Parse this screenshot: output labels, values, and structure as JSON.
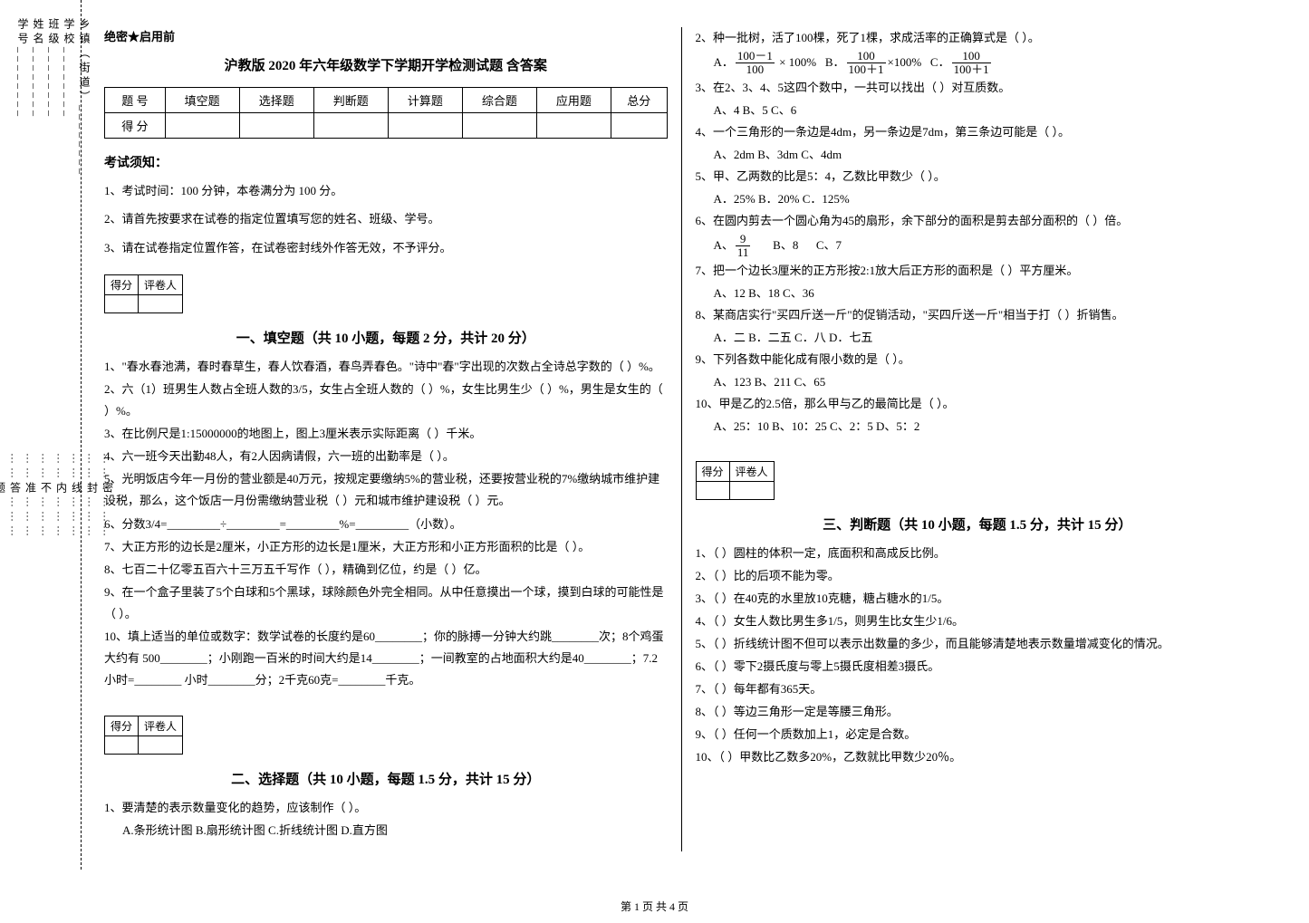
{
  "sideline": {
    "items1": [
      "乡镇（街道）________",
      "学校________",
      "班级________",
      "姓名________",
      "学号________"
    ],
    "items2": [
      "……密………",
      "……封………",
      "……线………",
      "……内………",
      "……不………",
      "……准………",
      "……答………",
      "……题………"
    ]
  },
  "secret": "绝密★启用前",
  "title": "沪教版 2020 年六年级数学下学期开学检测试题 含答案",
  "scoreTable": {
    "headers": [
      "题  号",
      "填空题",
      "选择题",
      "判断题",
      "计算题",
      "综合题",
      "应用题",
      "总分"
    ],
    "row": [
      "得  分",
      "",
      "",
      "",
      "",
      "",
      "",
      ""
    ]
  },
  "noticeHead": "考试须知：",
  "notices": [
    "1、考试时间：100 分钟，本卷满分为 100 分。",
    "2、请首先按要求在试卷的指定位置填写您的姓名、班级、学号。",
    "3、请在试卷指定位置作答，在试卷密封线外作答无效，不予评分。"
  ],
  "scorebox": {
    "c1": "得分",
    "c2": "评卷人"
  },
  "sections": {
    "fill": {
      "title": "一、填空题（共 10 小题，每题 2 分，共计 20 分）",
      "items": [
        "1、\"春水春池满，春时春草生，春人饮春酒，春鸟弄春色。\"诗中\"春\"字出现的次数占全诗总字数的（    ）%。",
        "2、六（1）班男生人数占全班人数的3/5，女生占全班人数的（    ）%，女生比男生少（    ）%，男生是女生的（    ）%。",
        "3、在比例尺是1:15000000的地图上，图上3厘米表示实际距离（    ）千米。",
        "4、六一班今天出勤48人，有2人因病请假，六一班的出勤率是（    ）。",
        "5、光明饭店今年一月份的营业额是40万元，按规定要缴纳5%的营业税，还要按营业税的7%缴纳城市维护建设税，那么，这个饭店一月份需缴纳营业税（    ）元和城市维护建设税（    ）元。",
        "6、分数3/4=_________÷_________=_________%=_________（小数）。",
        "7、大正方形的边长是2厘米，小正方形的边长是1厘米，大正方形和小正方形面积的比是（    ）。",
        "8、七百二十亿零五百六十三万五千写作（    ），精确到亿位，约是（    ）亿。",
        "9、在一个盒子里装了5个白球和5个黑球，球除颜色外完全相同。从中任意摸出一个球，摸到白球的可能性是（    ）。",
        "10、填上适当的单位或数字：数学试卷的长度约是60________；你的脉搏一分钟大约跳________次；8个鸡蛋大约有 500________；小刚跑一百米的时间大约是14________；一间教室的占地面积大约是40________；7.2小时=________ 小时________分；2千克60克=________千克。"
      ]
    },
    "choice": {
      "title": "二、选择题（共 10 小题，每题 1.5 分，共计 15 分）",
      "left": [
        {
          "q": "1、要清楚的表示数量变化的趋势，应该制作（    ）。",
          "opts": "A.条形统计图 B.扇形统计图 C.折线统计图 D.直方图"
        }
      ],
      "right": [
        {
          "q": "2、种一批树，活了100棵，死了1棵，求成活率的正确算式是（    ）。",
          "fracs": true
        },
        {
          "q": "3、在2、3、4、5这四个数中，一共可以找出（    ）对互质数。",
          "opts": "A、4    B、5    C、6"
        },
        {
          "q": "4、一个三角形的一条边是4dm，另一条边是7dm，第三条边可能是（    ）。",
          "opts": "A、2dm    B、3dm    C、4dm"
        },
        {
          "q": "5、甲、乙两数的比是5：4，乙数比甲数少（    ）。",
          "opts": "A．25%    B．20%    C．125%"
        },
        {
          "q": "6、在圆内剪去一个圆心角为45的扇形，余下部分的面积是剪去部分面积的（    ）倍。",
          "fracopt": true
        },
        {
          "q": "7、把一个边长3厘米的正方形按2:1放大后正方形的面积是（    ）平方厘米。",
          "opts": "A、12    B、18    C、36"
        },
        {
          "q": "8、某商店实行\"买四斤送一斤\"的促销活动，\"买四斤送一斤\"相当于打（    ）折销售。",
          "opts": "A．二    B．二五    C．八    D．七五"
        },
        {
          "q": "9、下列各数中能化成有限小数的是（    ）。",
          "opts": "A、123    B、211    C、65"
        },
        {
          "q": "10、甲是乙的2.5倍，那么甲与乙的最简比是（    ）。",
          "opts": "A、25：10  B、10：25  C、2：5  D、5：2"
        }
      ]
    },
    "judge": {
      "title": "三、判断题（共 10 小题，每题 1.5 分，共计 15 分）",
      "items": [
        "1、（    ）圆柱的体积一定，底面积和高成反比例。",
        "2、（    ）比的后项不能为零。",
        "3、（    ）在40克的水里放10克糖，糖占糖水的1/5。",
        "4、（    ）女生人数比男生多1/5，则男生比女生少1/6。",
        "5、（    ）折线统计图不但可以表示出数量的多少，而且能够清楚地表示数量增减变化的情况。",
        "6、（    ）零下2摄氏度与零上5摄氏度相差3摄氏。",
        "7、（    ）每年都有365天。",
        "8、（    ）等边三角形一定是等腰三角形。",
        "9、（    ）任何一个质数加上1，必定是合数。",
        "10、（    ）甲数比乙数多20%，乙数就比甲数少20％。"
      ]
    }
  },
  "footer": "第 1 页 共 4 页"
}
